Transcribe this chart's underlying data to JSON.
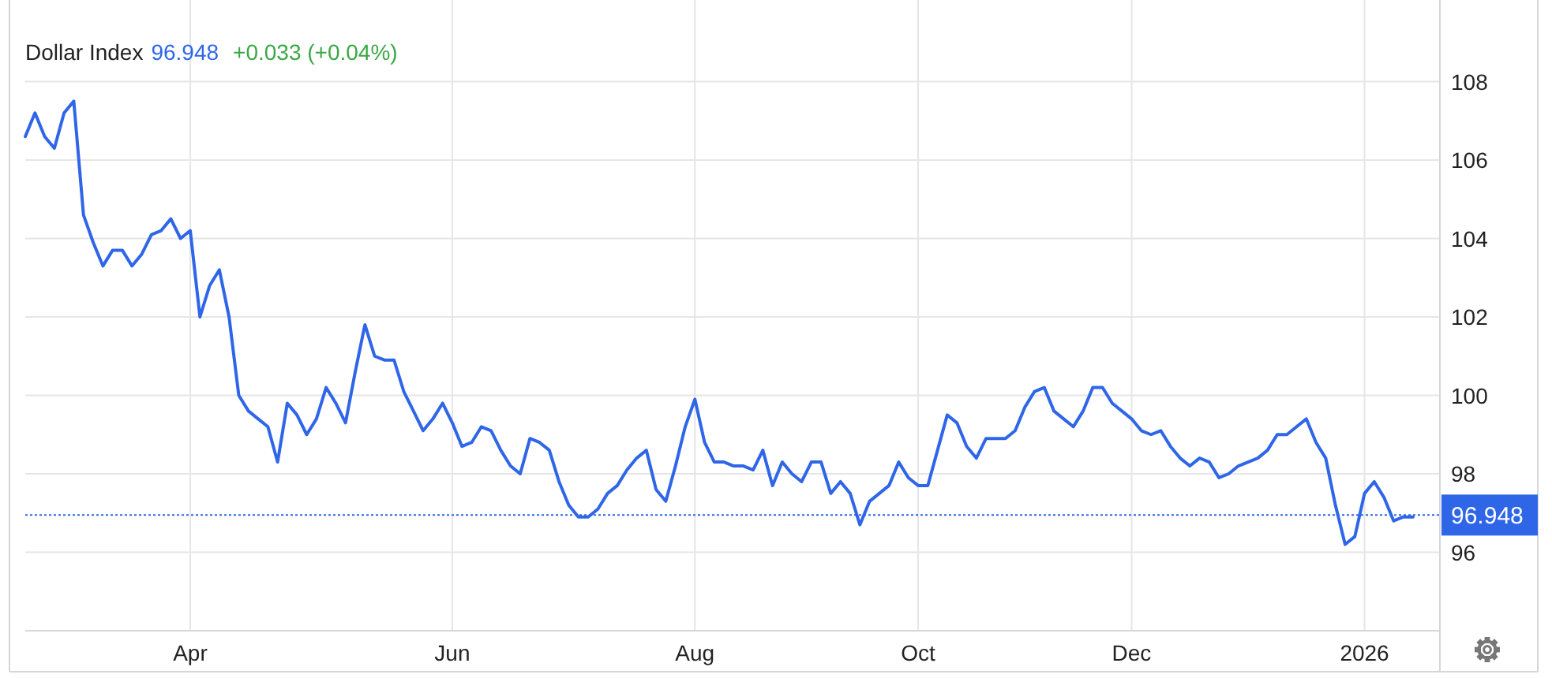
{
  "chart_data": {
    "type": "line",
    "title": "Dollar Index",
    "annotations": [
      "96.948",
      "+0.033 (+0.04%)"
    ],
    "categories": [
      null,
      null,
      null,
      null,
      null,
      null,
      null,
      null,
      null,
      null,
      null,
      null,
      null,
      null,
      null,
      null,
      null,
      "Apr",
      null,
      null,
      null,
      null,
      null,
      null,
      null,
      null,
      null,
      null,
      null,
      null,
      null,
      null,
      null,
      null,
      null,
      null,
      null,
      null,
      null,
      null,
      null,
      null,
      null,
      null,
      "Jun",
      null,
      null,
      null,
      null,
      null,
      null,
      null,
      null,
      null,
      null,
      null,
      null,
      null,
      null,
      null,
      null,
      null,
      null,
      null,
      null,
      null,
      null,
      null,
      null,
      "Aug",
      null,
      null,
      null,
      null,
      null,
      null,
      null,
      null,
      null,
      null,
      null,
      null,
      null,
      null,
      null,
      null,
      null,
      null,
      null,
      null,
      null,
      null,
      "Oct",
      null,
      null,
      null,
      null,
      null,
      null,
      null,
      null,
      null,
      null,
      null,
      null,
      null,
      null,
      null,
      null,
      null,
      null,
      null,
      null,
      null,
      "Dec",
      null,
      null,
      null,
      null,
      null,
      null,
      null,
      null,
      null,
      null,
      null,
      null,
      null,
      null,
      null,
      null,
      null,
      null,
      null,
      null,
      null,
      null,
      null,
      "2026",
      null,
      null,
      null,
      null,
      null
    ],
    "series": [
      {
        "color": "#2f66e8",
        "values": [
          106.6,
          107.2,
          106.6,
          106.3,
          107.2,
          107.5,
          104.6,
          103.9,
          103.3,
          103.7,
          103.7,
          103.3,
          103.6,
          104.1,
          104.2,
          104.5,
          104.0,
          104.2,
          102.0,
          102.8,
          103.2,
          102.0,
          100.0,
          99.6,
          99.4,
          99.2,
          98.3,
          99.8,
          99.5,
          99.0,
          99.4,
          100.2,
          99.8,
          99.3,
          100.6,
          101.8,
          101.0,
          100.9,
          100.9,
          100.1,
          99.6,
          99.1,
          99.4,
          99.8,
          99.3,
          98.7,
          98.8,
          99.2,
          99.1,
          98.6,
          98.2,
          98.0,
          98.9,
          98.8,
          98.6,
          97.8,
          97.2,
          96.9,
          96.9,
          97.1,
          97.5,
          97.7,
          98.1,
          98.4,
          98.6,
          97.6,
          97.3,
          98.2,
          99.2,
          99.9,
          98.8,
          98.3,
          98.3,
          98.2,
          98.2,
          98.1,
          98.6,
          97.7,
          98.3,
          98.0,
          97.8,
          98.3,
          98.3,
          97.5,
          97.8,
          97.5,
          96.7,
          97.3,
          97.5,
          97.7,
          98.3,
          97.9,
          97.7,
          97.7,
          98.6,
          99.5,
          99.3,
          98.7,
          98.4,
          98.9,
          98.9,
          98.9,
          99.1,
          99.7,
          100.1,
          100.2,
          99.6,
          99.4,
          99.2,
          99.6,
          100.2,
          100.2,
          99.8,
          99.6,
          99.4,
          99.1,
          99.0,
          99.1,
          98.7,
          98.4,
          98.2,
          98.4,
          98.3,
          97.9,
          98.0,
          98.2,
          98.3,
          98.4,
          98.6,
          99.0,
          99.0,
          99.2,
          99.4,
          98.8,
          98.4,
          97.2,
          96.2,
          96.4,
          97.5,
          97.8,
          97.4,
          96.8,
          96.9,
          96.9
        ]
      }
    ],
    "ylim": [
      94,
      110
    ],
    "yticks": [
      96,
      98,
      100,
      102,
      104,
      106,
      108
    ],
    "grid": true,
    "ref_lines": [
      {
        "axis": "y",
        "value": 96.948,
        "label": "96.948",
        "color": "#2f66e8",
        "line_style": "dotted"
      }
    ]
  }
}
